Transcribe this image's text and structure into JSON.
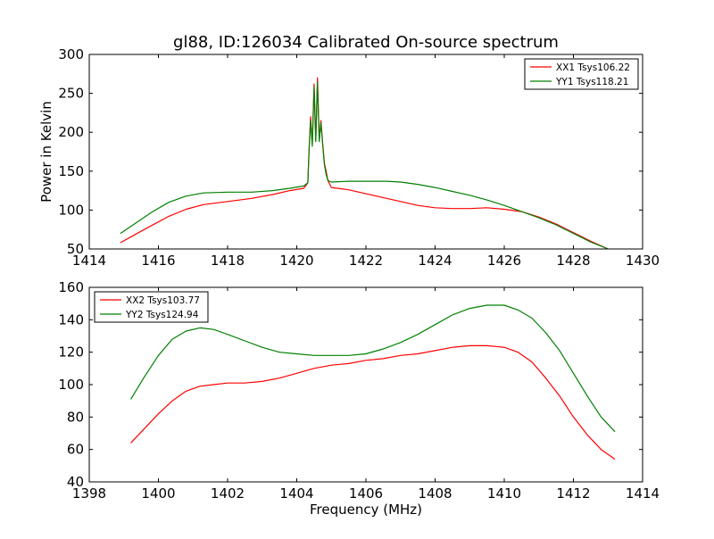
{
  "title": "gl88, ID:126034 Calibrated On-source spectrum",
  "colors": {
    "red": "#ff0000",
    "green": "#008000",
    "axis": "#000000"
  },
  "chart_data": [
    {
      "type": "line",
      "title": "gl88, ID:126034 Calibrated On-source spectrum",
      "xlabel": "",
      "ylabel": "Power in Kelvin",
      "xlim": [
        1414,
        1430
      ],
      "ylim": [
        50,
        300
      ],
      "xticks": [
        1414,
        1416,
        1418,
        1420,
        1422,
        1424,
        1426,
        1428,
        1430
      ],
      "yticks": [
        50,
        100,
        150,
        200,
        250,
        300
      ],
      "legend": "top-right",
      "grid": false,
      "series": [
        {
          "name": "XX1 Tsys106.22",
          "color": "#ff0000",
          "x": [
            1414.9,
            1415.3,
            1415.8,
            1416.3,
            1416.8,
            1417.3,
            1418.0,
            1418.7,
            1419.3,
            1419.8,
            1420.2,
            1420.32,
            1420.36,
            1420.4,
            1420.45,
            1420.5,
            1420.55,
            1420.6,
            1420.65,
            1420.7,
            1420.75,
            1420.8,
            1420.85,
            1420.9,
            1421.0,
            1421.5,
            1422.0,
            1422.6,
            1423.0,
            1423.5,
            1424.0,
            1424.5,
            1425.0,
            1425.5,
            1426.0,
            1426.5,
            1427.0,
            1427.5,
            1428.0,
            1428.5,
            1429.0
          ],
          "y": [
            58,
            68,
            80,
            92,
            101,
            107,
            111,
            115,
            120,
            125,
            128,
            135,
            180,
            220,
            185,
            262,
            190,
            270,
            190,
            215,
            185,
            160,
            150,
            138,
            129,
            126,
            121,
            115,
            111,
            106,
            103,
            102,
            102,
            103,
            101,
            98,
            91,
            82,
            71,
            60,
            50
          ]
        },
        {
          "name": "YY1 Tsys118.21",
          "color": "#008000",
          "x": [
            1414.9,
            1415.3,
            1415.8,
            1416.3,
            1416.8,
            1417.3,
            1418.0,
            1418.7,
            1419.3,
            1419.8,
            1420.2,
            1420.32,
            1420.36,
            1420.4,
            1420.45,
            1420.5,
            1420.55,
            1420.6,
            1420.65,
            1420.7,
            1420.75,
            1420.8,
            1420.85,
            1420.9,
            1421.0,
            1421.5,
            1422.0,
            1422.6,
            1423.0,
            1423.5,
            1424.0,
            1424.5,
            1425.0,
            1425.5,
            1426.0,
            1426.5,
            1427.0,
            1427.5,
            1428.0,
            1428.5,
            1429.0
          ],
          "y": [
            70,
            82,
            97,
            110,
            118,
            122,
            123,
            123,
            125,
            128,
            131,
            135,
            180,
            215,
            182,
            258,
            188,
            265,
            188,
            212,
            183,
            158,
            146,
            138,
            136,
            137,
            137,
            137,
            136,
            133,
            129,
            124,
            119,
            113,
            106,
            98,
            90,
            81,
            70,
            59,
            50
          ]
        }
      ]
    },
    {
      "type": "line",
      "title": "",
      "xlabel": "Frequency (MHz)",
      "ylabel": "",
      "xlim": [
        1398,
        1414
      ],
      "ylim": [
        40,
        160
      ],
      "xticks": [
        1398,
        1400,
        1402,
        1404,
        1406,
        1408,
        1410,
        1412,
        1414
      ],
      "yticks": [
        40,
        60,
        80,
        100,
        120,
        140,
        160
      ],
      "legend": "top-left",
      "grid": false,
      "series": [
        {
          "name": "XX2 Tsys103.77",
          "color": "#ff0000",
          "x": [
            1399.2,
            1399.6,
            1400.0,
            1400.4,
            1400.8,
            1401.2,
            1401.6,
            1402.0,
            1402.5,
            1403.0,
            1403.5,
            1404.0,
            1404.5,
            1405.0,
            1405.5,
            1406.0,
            1406.5,
            1407.0,
            1407.5,
            1408.0,
            1408.5,
            1409.0,
            1409.5,
            1410.0,
            1410.4,
            1410.8,
            1411.2,
            1411.6,
            1412.0,
            1412.4,
            1412.8,
            1413.2
          ],
          "y": [
            64,
            73,
            82,
            90,
            96,
            99,
            100,
            101,
            101,
            102,
            104,
            107,
            110,
            112,
            113,
            115,
            116,
            118,
            119,
            121,
            123,
            124,
            124,
            123,
            120,
            114,
            104,
            93,
            80,
            69,
            60,
            54
          ]
        },
        {
          "name": "YY2 Tsys124.94",
          "color": "#008000",
          "x": [
            1399.2,
            1399.6,
            1400.0,
            1400.4,
            1400.8,
            1401.2,
            1401.6,
            1402.0,
            1402.5,
            1403.0,
            1403.5,
            1404.0,
            1404.5,
            1405.0,
            1405.5,
            1406.0,
            1406.5,
            1407.0,
            1407.5,
            1408.0,
            1408.5,
            1409.0,
            1409.5,
            1410.0,
            1410.4,
            1410.8,
            1411.2,
            1411.6,
            1412.0,
            1412.4,
            1412.8,
            1413.2
          ],
          "y": [
            91,
            105,
            118,
            128,
            133,
            135,
            134,
            131,
            127,
            123,
            120,
            119,
            118,
            118,
            118,
            119,
            122,
            126,
            131,
            137,
            143,
            147,
            149,
            149,
            146,
            141,
            132,
            121,
            107,
            93,
            80,
            71
          ]
        }
      ]
    }
  ]
}
